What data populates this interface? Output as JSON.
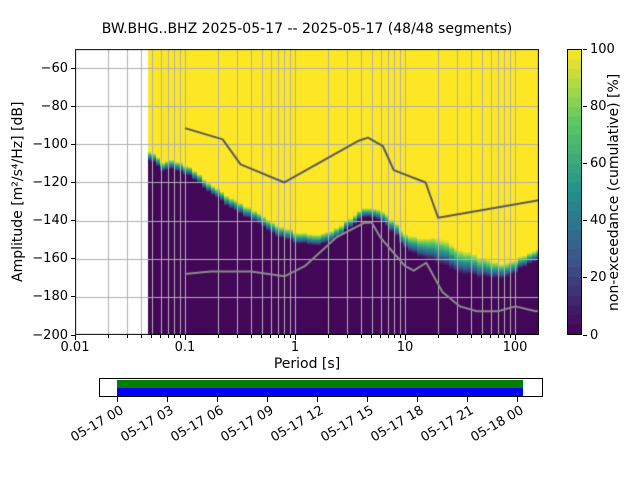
{
  "title": "BW.BHG..BHZ   2025-05-17 -- 2025-05-17  (48/48 segments)",
  "axes": {
    "xlabel": "Period [s]",
    "ylabel": "Amplitude [m²/s⁴/Hz] [dB]",
    "xtick_labels": [
      "0.01",
      "0.1",
      "1",
      "10",
      "100"
    ],
    "xtick_values": [
      0.01,
      0.1,
      1,
      10,
      100
    ],
    "ytick_labels": [
      "−60",
      "−80",
      "−100",
      "−120",
      "−140",
      "−160",
      "−180",
      "−200"
    ],
    "ytick_values": [
      -60,
      -80,
      -100,
      -120,
      -140,
      -160,
      -180,
      -200
    ]
  },
  "colorbar": {
    "label": "non-exceedance (cumulative) [%]",
    "tick_labels": [
      "0",
      "20",
      "40",
      "60",
      "80",
      "100"
    ],
    "tick_values": [
      0,
      20,
      40,
      60,
      80,
      100
    ],
    "range": [
      0,
      100
    ],
    "levels": 30,
    "colormap_anchors": [
      "#440154",
      "#3b528b",
      "#21918c",
      "#5ec962",
      "#fde725"
    ]
  },
  "timeline": {
    "tick_labels": [
      "05-17 00",
      "05-17 03",
      "05-17 06",
      "05-17 09",
      "05-17 12",
      "05-17 15",
      "05-17 18",
      "05-17 21",
      "05-18 00"
    ],
    "coverage_color": "#008000",
    "data_extent_color": "#0000ff"
  },
  "colors": {
    "grid": "#b0b0b0",
    "high_noise_model_line": "#5a5a5a",
    "low_noise_model_line": "#8c8c8c",
    "axes_border": "#000000",
    "background": "#ffffff"
  },
  "chart_data": {
    "type": "heatmap",
    "title": "BW.BHG..BHZ   2025-05-17 -- 2025-05-17  (48/48 segments)",
    "xlabel": "Period [s]",
    "ylabel": "Amplitude [m²/s⁴/Hz] [dB]",
    "colorbar_label": "non-exceedance (cumulative) [%]",
    "x_scale": "log",
    "xlim": [
      0.01,
      165
    ],
    "ylim": [
      -200,
      -50
    ],
    "value_range_percent": [
      0,
      100
    ],
    "grid": true,
    "data_min_period_s": 0.046,
    "distribution": {
      "comment": "per period column: center dB of cumulative transition band and half-width; below band = 0% (dark purple), above = 100% (yellow)",
      "periods_s": [
        0.046,
        0.055,
        0.062,
        0.07,
        0.085,
        0.1,
        0.13,
        0.16,
        0.2,
        0.3,
        0.45,
        0.65,
        1.0,
        1.5,
        2.2,
        3.0,
        4.0,
        4.8,
        6.0,
        8.0,
        10.0,
        15.0,
        21.0,
        30.0,
        40.0,
        55.0,
        75.0,
        95.0,
        120.0,
        165.0
      ],
      "center_db": [
        -106.5,
        -108,
        -112,
        -111,
        -111.5,
        -113,
        -118,
        -122,
        -126,
        -133,
        -139,
        -144.5,
        -148.5,
        -151,
        -147.5,
        -142,
        -137,
        -135.5,
        -138,
        -143.5,
        -151.5,
        -154.5,
        -156,
        -160.5,
        -163,
        -165.5,
        -166.5,
        -165,
        -161,
        -157.5
      ],
      "halfwidth_db": [
        2.5,
        2.5,
        2.5,
        2.5,
        2.5,
        2.5,
        2.5,
        2.5,
        2.5,
        3,
        3,
        3,
        3,
        3,
        3,
        2.5,
        2.5,
        2.5,
        3,
        3.5,
        4,
        5.5,
        7,
        6.5,
        6,
        5,
        4,
        3.5,
        3,
        3
      ]
    },
    "noise_models": {
      "high_noise_model": [
        [
          0.1,
          -91.5
        ],
        [
          0.22,
          -97.4
        ],
        [
          0.32,
          -110.5
        ],
        [
          0.8,
          -120.0
        ],
        [
          3.8,
          -98.1
        ],
        [
          4.6,
          -96.5
        ],
        [
          6.3,
          -101.0
        ],
        [
          7.9,
          -113.5
        ],
        [
          15.4,
          -120.0
        ],
        [
          20.0,
          -138.5
        ],
        [
          165.0,
          -129.3
        ]
      ],
      "low_noise_model": [
        [
          0.1,
          -168.0
        ],
        [
          0.17,
          -166.7
        ],
        [
          0.4,
          -166.7
        ],
        [
          0.8,
          -169.2
        ],
        [
          1.24,
          -163.7
        ],
        [
          2.4,
          -148.6
        ],
        [
          4.3,
          -141.1
        ],
        [
          5.0,
          -141.1
        ],
        [
          6.0,
          -149.0
        ],
        [
          10.0,
          -163.8
        ],
        [
          12.0,
          -166.2
        ],
        [
          15.6,
          -162.1
        ],
        [
          21.9,
          -177.5
        ],
        [
          31.6,
          -185.0
        ],
        [
          45.0,
          -187.5
        ],
        [
          70.0,
          -187.5
        ],
        [
          101.0,
          -185.0
        ],
        [
          154.0,
          -187.5
        ],
        [
          165.0,
          -187.4
        ]
      ]
    }
  }
}
